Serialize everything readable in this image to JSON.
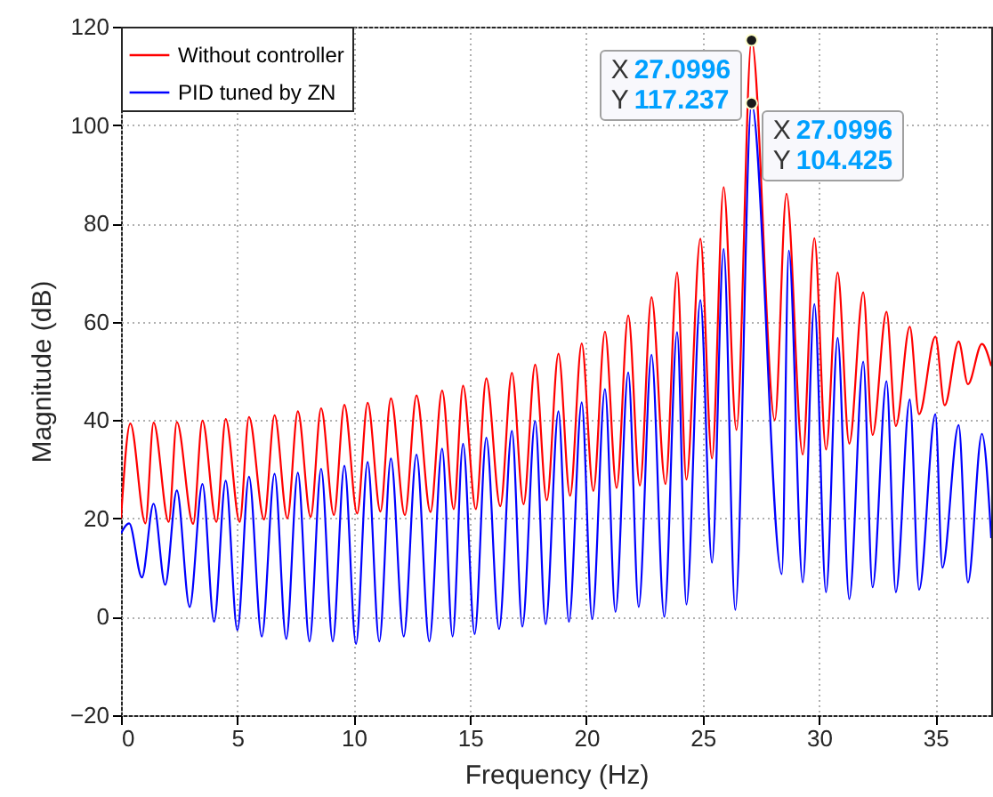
{
  "chart_data": {
    "type": "line",
    "xlabel": "Frequency (Hz)",
    "ylabel": "Magnitude (dB)",
    "xlim": [
      0,
      37.4
    ],
    "xticks": [
      0,
      5,
      10,
      15,
      20,
      25,
      30,
      35
    ],
    "ylim": [
      -20,
      120
    ],
    "yticks": [
      -20,
      0,
      20,
      40,
      60,
      80,
      100,
      120
    ],
    "grid": true,
    "legend": "top left",
    "line_style": "solid",
    "series": [
      {
        "name": "Without controller",
        "color": "#ff0000",
        "x": [
          0,
          0.4,
          1.05,
          1.4,
          2.05,
          2.4,
          3.1,
          3.5,
          4.1,
          4.5,
          5.1,
          5.5,
          6.15,
          6.6,
          7.15,
          7.6,
          8.15,
          8.6,
          9.15,
          9.6,
          10.15,
          10.6,
          11.15,
          11.6,
          12.2,
          12.7,
          13.3,
          13.8,
          14.3,
          14.7,
          15.25,
          15.7,
          16.3,
          16.8,
          17.3,
          17.8,
          18.3,
          18.8,
          19.3,
          19.8,
          20.3,
          20.8,
          21.3,
          21.8,
          22.3,
          22.8,
          23.4,
          23.9,
          24.3,
          24.9,
          25.4,
          25.9,
          26.45,
          27.0996,
          28.1,
          28.6,
          29.3,
          29.8,
          30.3,
          30.8,
          31.3,
          31.9,
          32.3,
          32.9,
          33.3,
          33.9,
          34.3,
          35.0,
          35.4,
          36.0,
          36.4,
          37.0,
          37.4
        ],
        "values": [
          20,
          39.3,
          19,
          39.5,
          19.3,
          39.6,
          18.9,
          39.9,
          19.3,
          40.2,
          19.3,
          40.6,
          19.8,
          41,
          20,
          41.8,
          20.3,
          42.4,
          20.7,
          43.1,
          21,
          43.5,
          21.4,
          44.4,
          20.7,
          45,
          21.3,
          46,
          21.9,
          47,
          21.9,
          48.5,
          22.5,
          49.6,
          22.9,
          51.3,
          23.7,
          53.5,
          24.6,
          55.6,
          25.6,
          58,
          26.2,
          61.3,
          26.7,
          65,
          27,
          70,
          27.9,
          76.9,
          32.2,
          87.4,
          38,
          117.237,
          40,
          86,
          33,
          77,
          34,
          70,
          35.2,
          66,
          37,
          62,
          38.8,
          59,
          41.2,
          57,
          43,
          56,
          47.3,
          55.5,
          51
        ]
      },
      {
        "name": "PID tuned by ZN",
        "color": "#0000ff",
        "x": [
          0,
          0.35,
          0.9,
          1.4,
          1.9,
          2.4,
          2.95,
          3.5,
          4.0,
          4.5,
          5.0,
          5.5,
          6.05,
          6.6,
          7.1,
          7.6,
          8.1,
          8.6,
          9.1,
          9.6,
          10.1,
          10.6,
          11.1,
          11.6,
          12.15,
          12.7,
          13.25,
          13.8,
          14.25,
          14.7,
          15.2,
          15.7,
          16.25,
          16.8,
          17.25,
          17.8,
          18.25,
          18.8,
          19.25,
          19.8,
          20.25,
          20.8,
          21.25,
          21.8,
          22.25,
          22.8,
          23.35,
          23.9,
          24.3,
          24.9,
          25.4,
          25.9,
          26.4,
          27.0996,
          28.4,
          28.7,
          29.3,
          29.8,
          30.3,
          30.8,
          31.3,
          31.9,
          32.3,
          32.9,
          33.3,
          33.9,
          34.3,
          35.0,
          35.3,
          36.0,
          36.4,
          37.0,
          37.4
        ],
        "values": [
          17,
          19,
          8,
          23,
          6.5,
          25.7,
          2,
          27,
          -1,
          27.7,
          -2.7,
          28.5,
          -4,
          29.1,
          -4.5,
          29.3,
          -5,
          30.1,
          -5,
          30.7,
          -5.5,
          31.5,
          -5,
          32.2,
          -4,
          33,
          -5,
          34.2,
          -4,
          35.2,
          -3.5,
          36.4,
          -2.5,
          37.8,
          -2,
          39.8,
          -1.5,
          41.8,
          -1,
          43.6,
          -0.5,
          46.3,
          1,
          49.7,
          2,
          53.3,
          0,
          57.9,
          2.5,
          64.4,
          11,
          74.8,
          1.4,
          104.425,
          8.7,
          74.5,
          7,
          63.6,
          5,
          56.7,
          3.6,
          51.9,
          6,
          47.9,
          5,
          44.2,
          5.5,
          41.2,
          10,
          39,
          7,
          37.2,
          16
        ]
      }
    ],
    "annotations": [
      {
        "text": "X 27.0996\nY 117.237",
        "x": 27.0996,
        "y": 117.237
      },
      {
        "text": "X 27.0996\nY 104.425",
        "x": 27.0996,
        "y": 104.425
      }
    ]
  }
}
